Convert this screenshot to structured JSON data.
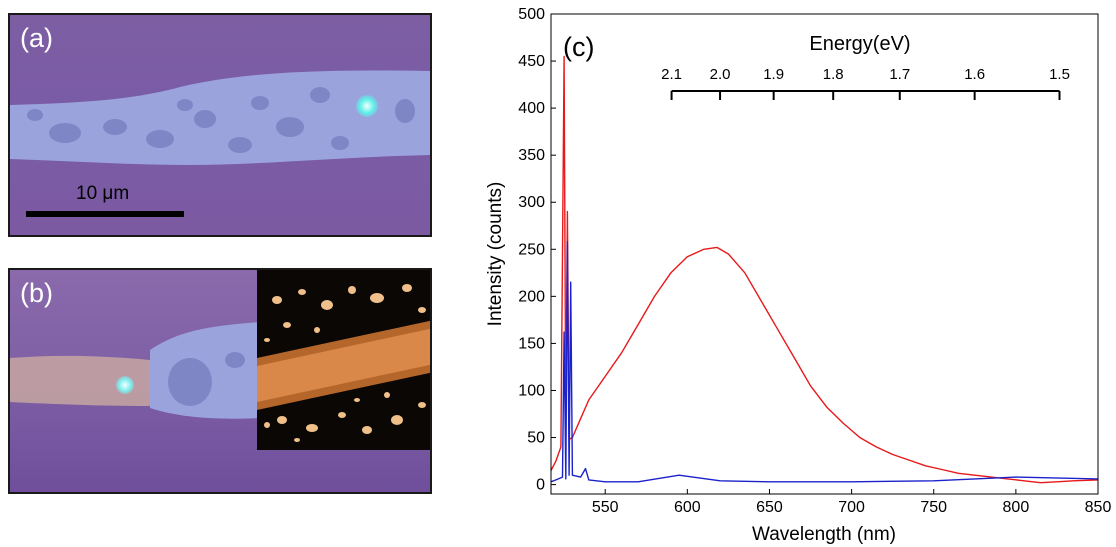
{
  "panels": {
    "a": {
      "label": "(a)",
      "scale_bar_label": "10 μm"
    },
    "b": {
      "label": "(b)"
    }
  },
  "chart_data": {
    "type": "line",
    "panel_label": "(c)",
    "xlabel": "Wavelength (nm)",
    "ylabel": "Intensity (counts)",
    "xlim": [
      517,
      850
    ],
    "ylim": [
      -10,
      500
    ],
    "xticks": [
      550,
      600,
      650,
      700,
      750,
      800,
      850
    ],
    "yticks": [
      0,
      50,
      100,
      150,
      200,
      250,
      300,
      350,
      400,
      450,
      500
    ],
    "grid": false,
    "legend": "none",
    "top_axis": {
      "title": "Energy(eV)",
      "ticks": [
        {
          "label": "2.1",
          "energy_eV": 2.1
        },
        {
          "label": "2.0",
          "energy_eV": 2.0
        },
        {
          "label": "1.9",
          "energy_eV": 1.9
        },
        {
          "label": "1.8",
          "energy_eV": 1.8
        },
        {
          "label": "1.7",
          "energy_eV": 1.7
        },
        {
          "label": "1.6",
          "energy_eV": 1.6
        },
        {
          "label": "1.5",
          "energy_eV": 1.5
        }
      ]
    },
    "series": [
      {
        "color": "#e8191b",
        "x": [
          517,
          520,
          523,
          525,
          526,
          527,
          528,
          530,
          535,
          540,
          550,
          560,
          570,
          580,
          590,
          600,
          610,
          618,
          625,
          635,
          645,
          655,
          665,
          675,
          685,
          695,
          705,
          715,
          725,
          735,
          745,
          755,
          765,
          775,
          785,
          795,
          805,
          815,
          825,
          835,
          850
        ],
        "y": [
          15,
          25,
          40,
          455,
          60,
          290,
          48,
          50,
          70,
          90,
          115,
          140,
          170,
          200,
          225,
          242,
          250,
          252,
          245,
          225,
          195,
          165,
          135,
          105,
          82,
          65,
          50,
          40,
          32,
          26,
          20,
          16,
          12,
          10,
          8,
          6,
          4,
          2,
          3,
          4,
          5
        ]
      },
      {
        "color": "#1b22c9",
        "x": [
          517,
          520,
          524,
          525,
          526,
          527,
          528,
          529,
          530,
          535,
          538,
          540,
          550,
          570,
          595,
          620,
          650,
          700,
          750,
          800,
          850
        ],
        "y": [
          3,
          5,
          8,
          162,
          6,
          258,
          10,
          215,
          10,
          8,
          17,
          5,
          3,
          3,
          10,
          4,
          3,
          3,
          4,
          8,
          6
        ]
      }
    ]
  }
}
